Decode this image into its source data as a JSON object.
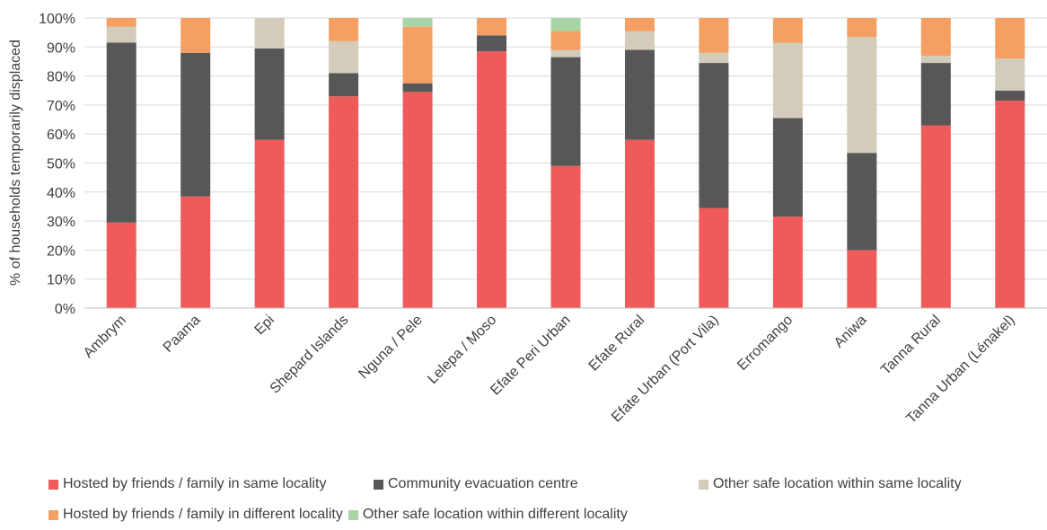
{
  "chart_data": {
    "type": "bar",
    "stacked": true,
    "ylabel": "% of households temporarily displaced",
    "xlabel": "",
    "title": "",
    "ylim": [
      0,
      100
    ],
    "yticks": [
      "0%",
      "10%",
      "20%",
      "30%",
      "40%",
      "50%",
      "60%",
      "70%",
      "80%",
      "90%",
      "100%"
    ],
    "grid": true,
    "legend_position": "bottom",
    "categories": [
      "Ambrym",
      "Paama",
      "Epi",
      "Shepard Islands",
      "Nguna / Pele",
      "Lelepa / Moso",
      "Efate Peri Urban",
      "Efate Rural",
      "Efate Urban (Port Vila)",
      "Erromango",
      "Aniwa",
      "Tanna Rural",
      "Tanna Urban (Lénakel)"
    ],
    "series": [
      {
        "name": "Hosted by friends / family in same locality",
        "color": "#ef5a5a",
        "values": [
          29.5,
          38.5,
          58,
          73,
          74.5,
          88.5,
          49,
          58,
          34.5,
          31.5,
          20,
          63,
          71.5
        ]
      },
      {
        "name": "Community evacuation centre",
        "color": "#575757",
        "values": [
          62,
          49.5,
          31.5,
          8,
          3,
          5.5,
          37.5,
          31,
          50,
          34,
          33.5,
          21.5,
          3.5
        ]
      },
      {
        "name": "Other safe location within same locality",
        "color": "#d3ccba",
        "values": [
          5.5,
          0,
          10.5,
          11,
          0,
          0,
          2.5,
          6.5,
          3.5,
          26,
          40,
          2.5,
          11
        ]
      },
      {
        "name": "Hosted by friends / family in different locality",
        "color": "#f5a062",
        "values": [
          3,
          12,
          0,
          8,
          19.5,
          6,
          6.5,
          4.5,
          12,
          8.5,
          6.5,
          13,
          14
        ]
      },
      {
        "name": "Other safe location within different locality",
        "color": "#a8d4a6",
        "values": [
          0,
          0,
          0,
          0,
          3,
          0,
          4.5,
          0,
          0,
          0,
          0,
          0,
          0
        ]
      }
    ]
  }
}
